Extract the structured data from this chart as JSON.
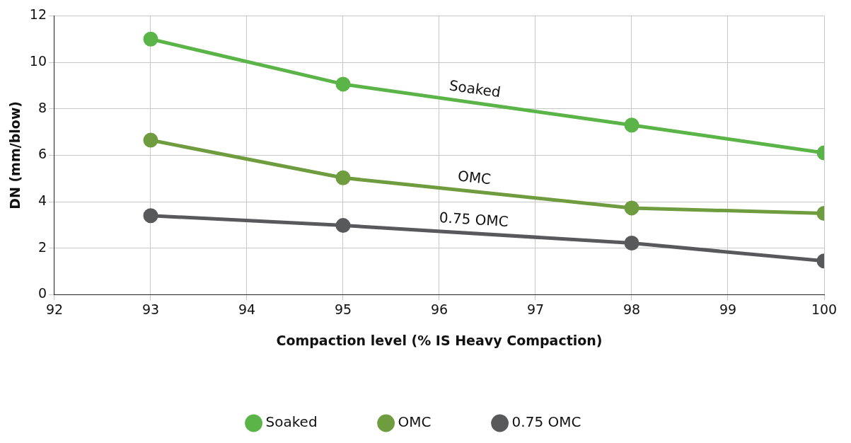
{
  "chart_data": {
    "type": "line",
    "xlabel": "Compaction level (% IS Heavy Compaction)",
    "ylabel": "DN (mm/blow)",
    "x": [
      93,
      95,
      98,
      100
    ],
    "series": [
      {
        "name": "Soaked",
        "color": "#5ab448",
        "values": [
          11.0,
          9.06,
          7.3,
          6.1
        ]
      },
      {
        "name": "OMC",
        "color": "#6e9c3f",
        "values": [
          6.65,
          5.03,
          3.73,
          3.5
        ]
      },
      {
        "name": "0.75 OMC",
        "color": "#58595b",
        "values": [
          3.4,
          2.98,
          2.22,
          1.45
        ]
      }
    ],
    "xlim": [
      92,
      100
    ],
    "xticks": [
      92,
      93,
      94,
      95,
      96,
      97,
      98,
      99,
      100
    ],
    "ylim": [
      0,
      12
    ],
    "yticks": [
      0,
      2,
      4,
      6,
      8,
      10,
      12
    ],
    "grid": true,
    "legend": "bottom",
    "marker": "circle",
    "line_style": "solid"
  }
}
